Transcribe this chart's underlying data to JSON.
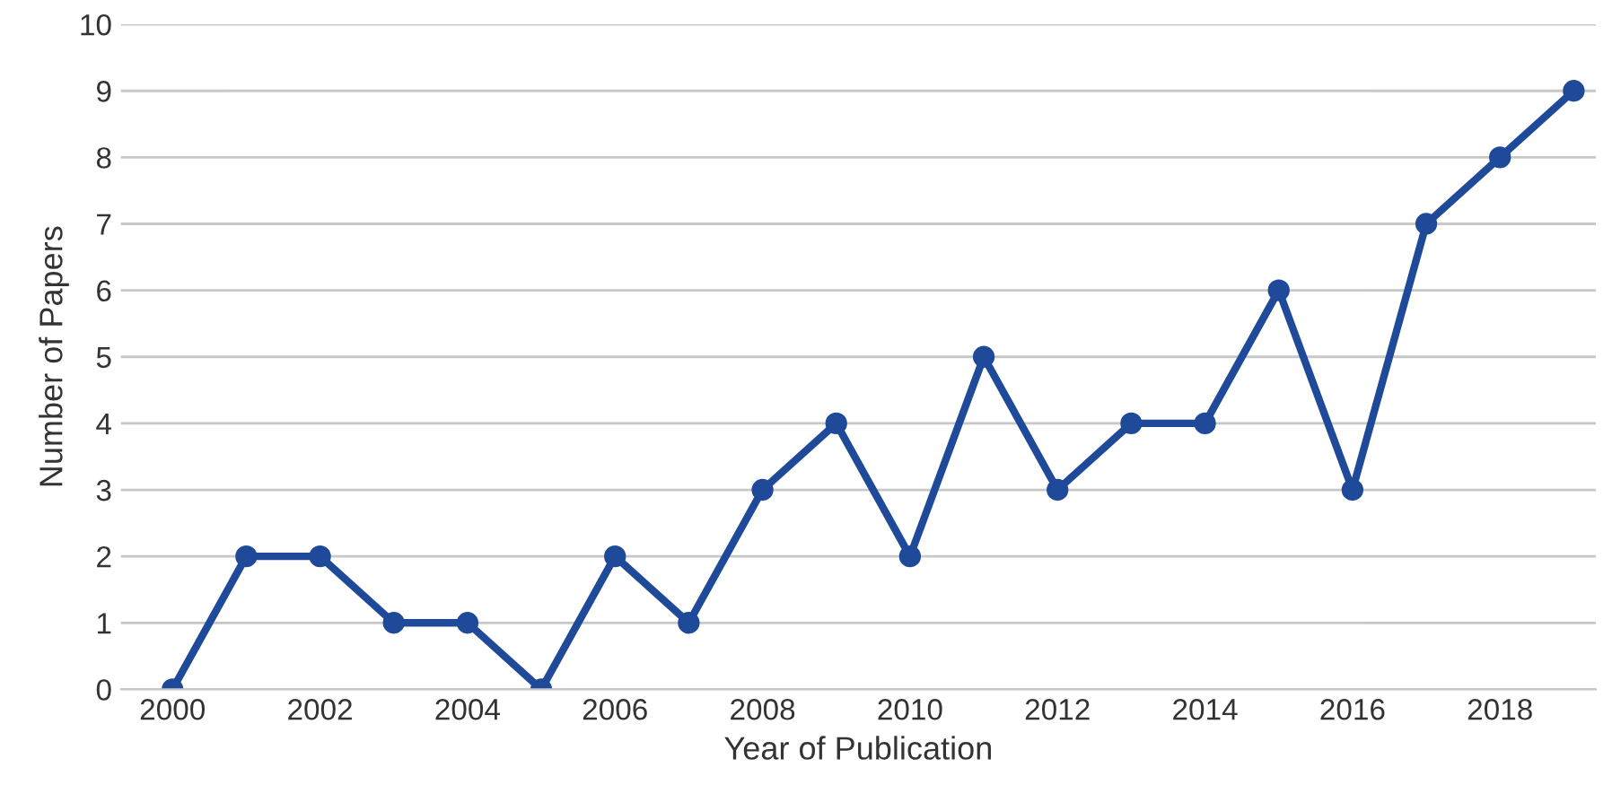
{
  "chart_data": {
    "type": "line",
    "xlabel": "Year of Publication",
    "ylabel": "Number of Papers",
    "x": [
      2000,
      2001,
      2002,
      2003,
      2004,
      2005,
      2006,
      2007,
      2008,
      2009,
      2010,
      2011,
      2012,
      2013,
      2014,
      2015,
      2016,
      2017,
      2018,
      2019
    ],
    "series": [
      {
        "color": "#1f4a9a",
        "values": [
          0,
          2,
          2,
          1,
          1,
          0,
          2,
          1,
          3,
          4,
          2,
          5,
          3,
          4,
          4,
          6,
          3,
          7,
          8,
          9
        ]
      }
    ],
    "xlim": [
      1999.3,
      2019.3
    ],
    "xticks": [
      2000,
      2002,
      2004,
      2006,
      2008,
      2010,
      2012,
      2014,
      2016,
      2018
    ],
    "ylim": [
      0,
      10
    ],
    "yticks": [
      0,
      1,
      2,
      3,
      4,
      5,
      6,
      7,
      8,
      9,
      10
    ],
    "grid": "y",
    "legend": false,
    "marker": "circle",
    "line_style": "solid"
  }
}
